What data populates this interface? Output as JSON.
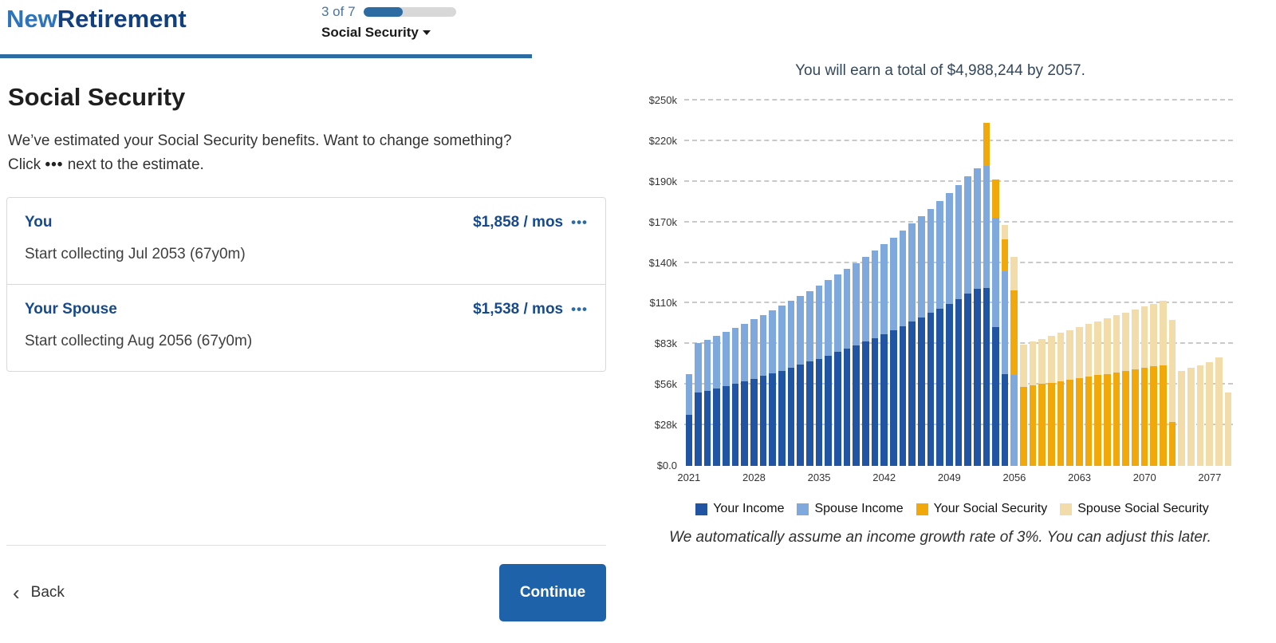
{
  "icons": {
    "dots": "•••",
    "chevron_left": "‹"
  },
  "header": {
    "logo_part1": "New",
    "logo_part2": "Retirement",
    "progress": {
      "step_label": "3 of 7",
      "current": 3,
      "total": 7,
      "dropdown_label": "Social Security"
    }
  },
  "main": {
    "title": "Social Security",
    "intro_line1": "We’ve estimated your Social Security benefits. Want to change something?",
    "intro_click_prefix": "Click",
    "intro_line2_rest": "next to the estimate.",
    "estimates": [
      {
        "name": "You",
        "amount": "$1,858 / mos",
        "detail": "Start collecting Jul 2053 (67y0m)"
      },
      {
        "name": "Your Spouse",
        "amount": "$1,538 / mos",
        "detail": "Start collecting Aug 2056 (67y0m)"
      }
    ],
    "back_label": "Back",
    "continue_label": "Continue"
  },
  "chart_data": {
    "type": "bar",
    "stacked": true,
    "title": "You will earn a total of $4,988,244 by 2057.",
    "footnote": "We automatically assume an income growth rate of 3%. You can adjust this later.",
    "unit": "thousands of USD per year",
    "ymax": 250,
    "grid": "dashed",
    "legend_position": "bottom",
    "y_tick_labels": [
      "$0.0",
      "$28k",
      "$56k",
      "$83k",
      "$110k",
      "$140k",
      "$170k",
      "$190k",
      "$220k",
      "$250k"
    ],
    "x_tick_labels": [
      "2021",
      "2028",
      "2035",
      "2042",
      "2049",
      "2056",
      "2063",
      "2070",
      "2077"
    ],
    "x": [
      2021,
      2022,
      2023,
      2024,
      2025,
      2026,
      2027,
      2028,
      2029,
      2030,
      2031,
      2032,
      2033,
      2034,
      2035,
      2036,
      2037,
      2038,
      2039,
      2040,
      2041,
      2042,
      2043,
      2044,
      2045,
      2046,
      2047,
      2048,
      2049,
      2050,
      2051,
      2052,
      2053,
      2054,
      2055,
      2056,
      2057,
      2058,
      2059,
      2060,
      2061,
      2062,
      2063,
      2064,
      2065,
      2066,
      2067,
      2068,
      2069,
      2070,
      2071,
      2072,
      2073,
      2074,
      2075,
      2076,
      2077,
      2078,
      2079
    ],
    "series": [
      {
        "name": "Your Income",
        "color": "#2155a4",
        "values": [
          35,
          50,
          51.5,
          53,
          54.6,
          56.3,
          58,
          59.7,
          61.5,
          63.3,
          65.2,
          67.2,
          69.2,
          71.3,
          73.4,
          75.6,
          77.9,
          80.2,
          82.6,
          85.1,
          87.6,
          90.3,
          93,
          95.8,
          98.6,
          101.6,
          104.6,
          107.8,
          111,
          114.3,
          117.8,
          121.3,
          122,
          95,
          63,
          0,
          0,
          0,
          0,
          0,
          0,
          0,
          0,
          0,
          0,
          0,
          0,
          0,
          0,
          0,
          0,
          0,
          0,
          0,
          0,
          0,
          0,
          0,
          0
        ]
      },
      {
        "name": "Spouse Income",
        "color": "#7fa8dd",
        "values": [
          28,
          34,
          35,
          36.1,
          37.2,
          38.3,
          39.4,
          40.6,
          41.8,
          43.1,
          44.4,
          45.7,
          47.1,
          48.5,
          49.9,
          51.4,
          53,
          54.6,
          56.2,
          57.9,
          59.6,
          61.4,
          63.2,
          65.1,
          67.1,
          69.1,
          71.2,
          73.3,
          75.5,
          77.8,
          80.1,
          82.5,
          83,
          75,
          70,
          62,
          0,
          0,
          0,
          0,
          0,
          0,
          0,
          0,
          0,
          0,
          0,
          0,
          0,
          0,
          0,
          0,
          0,
          0,
          0,
          0,
          0,
          0,
          0
        ]
      },
      {
        "name": "Your Social Security",
        "color": "#f0a80b",
        "values": [
          0,
          0,
          0,
          0,
          0,
          0,
          0,
          0,
          0,
          0,
          0,
          0,
          0,
          0,
          0,
          0,
          0,
          0,
          0,
          0,
          0,
          0,
          0,
          0,
          0,
          0,
          0,
          0,
          0,
          0,
          0,
          0,
          30,
          26,
          22,
          58,
          54,
          55,
          56,
          57,
          58,
          59,
          60,
          61,
          62,
          63,
          64,
          65,
          66,
          67,
          68,
          69,
          30,
          0,
          0,
          0,
          0,
          0,
          0
        ]
      },
      {
        "name": "Spouse Social Security",
        "color": "#f2dcaa",
        "values": [
          0,
          0,
          0,
          0,
          0,
          0,
          0,
          0,
          0,
          0,
          0,
          0,
          0,
          0,
          0,
          0,
          0,
          0,
          0,
          0,
          0,
          0,
          0,
          0,
          0,
          0,
          0,
          0,
          0,
          0,
          0,
          0,
          0,
          0,
          10,
          23,
          29,
          30,
          31,
          32,
          33,
          34,
          35,
          36,
          37,
          38,
          39,
          40,
          41,
          42,
          43,
          44,
          70,
          65,
          67,
          69,
          71,
          74,
          50
        ]
      }
    ]
  }
}
